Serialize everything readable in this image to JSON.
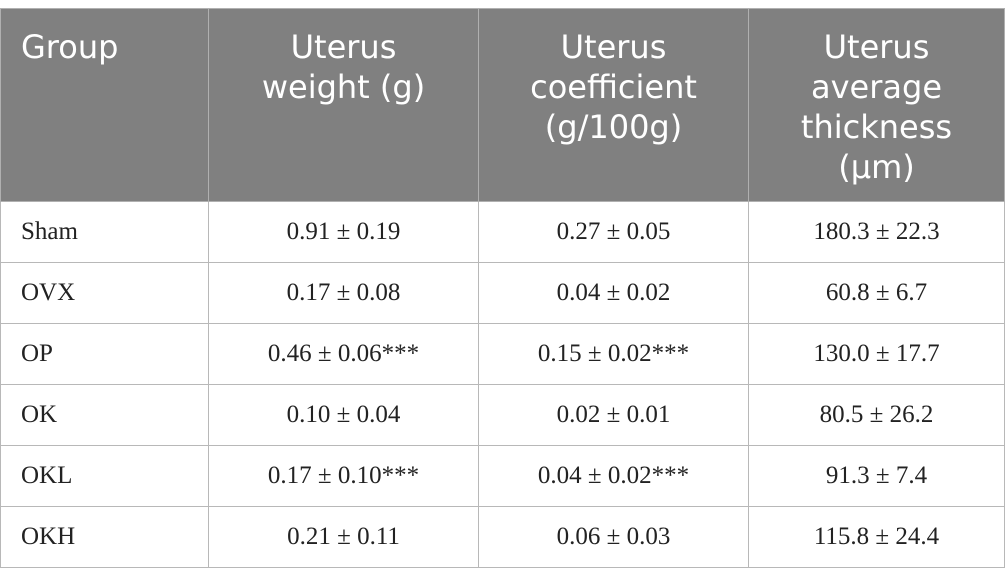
{
  "table": {
    "headers": [
      [
        "Group"
      ],
      [
        "Uterus",
        "weight (g)"
      ],
      [
        "Uterus",
        "coefficient",
        "(g/100g)"
      ],
      [
        "Uterus",
        "average",
        "thickness",
        "(μm)"
      ]
    ],
    "rows": [
      [
        "Sham",
        "0.91 ± 0.19",
        "0.27 ± 0.05",
        "180.3 ± 22.3"
      ],
      [
        "OVX",
        "0.17 ± 0.08",
        "0.04 ± 0.02",
        "60.8 ± 6.7"
      ],
      [
        "OP",
        "0.46 ± 0.06***",
        "0.15 ± 0.02***",
        "130.0 ± 17.7"
      ],
      [
        "OK",
        "0.10 ± 0.04",
        "0.02 ± 0.01",
        "80.5 ± 26.2"
      ],
      [
        "OKL",
        "0.17 ± 0.10***",
        "0.04 ± 0.02***",
        "91.3 ± 7.4"
      ],
      [
        "OKH",
        "0.21 ± 0.11",
        "0.06 ± 0.03",
        "115.8 ± 24.4"
      ]
    ]
  }
}
